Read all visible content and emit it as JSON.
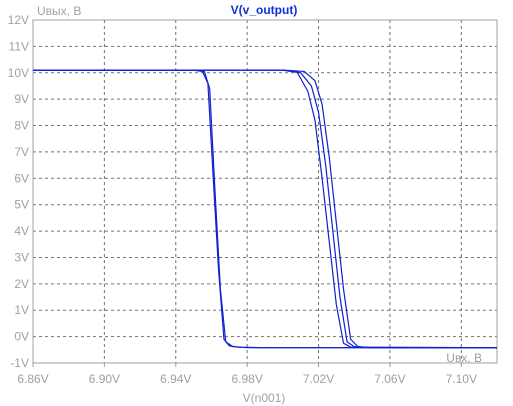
{
  "chart_data": {
    "type": "line",
    "title": "V(v_output)",
    "xlabel": "V(n001)",
    "ylabel_annotation": "Uвых, В",
    "xlabel_annotation": "Uвх, В",
    "xlim": [
      6.86,
      7.12
    ],
    "ylim": [
      -1,
      12
    ],
    "x_ticks": [
      6.86,
      6.9,
      6.94,
      6.98,
      7.02,
      7.06,
      7.1
    ],
    "x_tick_labels": [
      "6.86V",
      "6.90V",
      "6.94V",
      "6.98V",
      "7.02V",
      "7.06V",
      "7.10V"
    ],
    "y_ticks": [
      -1,
      0,
      1,
      2,
      3,
      4,
      5,
      6,
      7,
      8,
      9,
      10,
      11,
      12
    ],
    "y_tick_labels": [
      "-1V",
      "0V",
      "1V",
      "2V",
      "3V",
      "4V",
      "5V",
      "6V",
      "7V",
      "8V",
      "9V",
      "10V",
      "11V",
      "12V"
    ],
    "grid": true,
    "series": [
      {
        "values_xy": [
          [
            6.86,
            10.1
          ],
          [
            6.95,
            10.1
          ],
          [
            6.955,
            10.05
          ],
          [
            6.958,
            9.6
          ],
          [
            6.961,
            6.0
          ],
          [
            6.964,
            2.5
          ],
          [
            6.967,
            -0.1
          ],
          [
            6.97,
            -0.35
          ],
          [
            6.975,
            -0.4
          ],
          [
            6.99,
            -0.42
          ],
          [
            7.12,
            -0.42
          ]
        ]
      },
      {
        "values_xy": [
          [
            6.86,
            10.1
          ],
          [
            6.95,
            10.1
          ],
          [
            6.956,
            10.05
          ],
          [
            6.959,
            9.4
          ],
          [
            6.962,
            5.5
          ],
          [
            6.965,
            1.8
          ],
          [
            6.968,
            -0.2
          ],
          [
            6.972,
            -0.38
          ],
          [
            6.98,
            -0.42
          ],
          [
            7.12,
            -0.42
          ]
        ]
      },
      {
        "values_xy": [
          [
            6.86,
            10.1
          ],
          [
            7.0,
            10.1
          ],
          [
            7.01,
            10.0
          ],
          [
            7.016,
            9.5
          ],
          [
            7.02,
            8.5
          ],
          [
            7.024,
            6.5
          ],
          [
            7.028,
            4.0
          ],
          [
            7.032,
            1.5
          ],
          [
            7.036,
            -0.2
          ],
          [
            7.04,
            -0.38
          ],
          [
            7.05,
            -0.42
          ],
          [
            7.12,
            -0.42
          ]
        ]
      },
      {
        "values_xy": [
          [
            6.86,
            10.1
          ],
          [
            7.0,
            10.1
          ],
          [
            7.012,
            10.05
          ],
          [
            7.018,
            9.7
          ],
          [
            7.022,
            8.8
          ],
          [
            7.026,
            6.8
          ],
          [
            7.03,
            4.3
          ],
          [
            7.034,
            1.8
          ],
          [
            7.038,
            -0.1
          ],
          [
            7.042,
            -0.38
          ],
          [
            7.05,
            -0.42
          ],
          [
            7.12,
            -0.42
          ]
        ]
      },
      {
        "values_xy": [
          [
            6.86,
            10.1
          ],
          [
            7.0,
            10.1
          ],
          [
            7.008,
            10.02
          ],
          [
            7.014,
            9.3
          ],
          [
            7.018,
            8.2
          ],
          [
            7.022,
            6.0
          ],
          [
            7.026,
            3.6
          ],
          [
            7.03,
            1.2
          ],
          [
            7.034,
            -0.25
          ],
          [
            7.038,
            -0.4
          ],
          [
            7.12,
            -0.42
          ]
        ]
      }
    ],
    "colors": {
      "line": "#1020d0",
      "title": "#1030d8",
      "axis_text": "#a0a0a0",
      "grid": "#707070",
      "frame": "#a0a0a0"
    }
  }
}
